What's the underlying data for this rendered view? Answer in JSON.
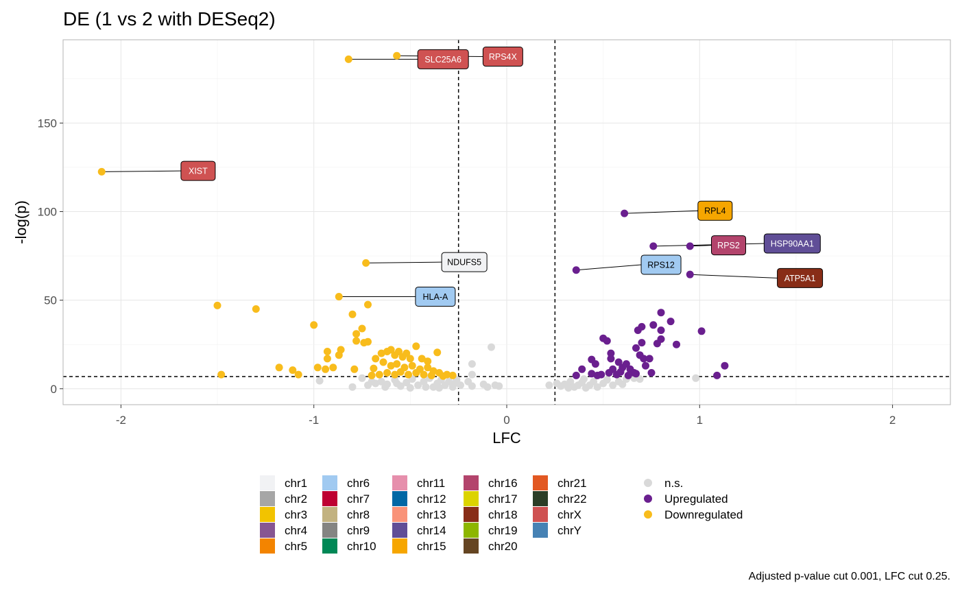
{
  "chart_data": {
    "type": "scatter",
    "title": "DE (1 vs 2 with DESeq2)",
    "xlabel": "LFC",
    "ylabel": "-log(p)",
    "xlim": [
      -2.3,
      2.3
    ],
    "ylim": [
      -9,
      197
    ],
    "x_ticks": [
      -2,
      -1,
      0,
      1,
      2
    ],
    "x_tick_labels": [
      "-2",
      "-1",
      "0",
      "1",
      "2"
    ],
    "y_ticks": [
      0,
      50,
      100,
      150
    ],
    "y_tick_labels": [
      "0",
      "50",
      "100",
      "150"
    ],
    "grid": true,
    "lfc_cut": 0.25,
    "p_cut_line": 6.9,
    "caption": "Adjusted p-value cut 0.001, LFC cut 0.25.",
    "status_colors": {
      "n.s.": "#d9d9d9",
      "Upregulated": "#6a1f8f",
      "Downregulated": "#f8bc1c"
    },
    "legend_status": [
      "n.s.",
      "Upregulated",
      "Downregulated"
    ],
    "legend_chr": [
      {
        "name": "chr1",
        "color": "#f1f2f4"
      },
      {
        "name": "chr2",
        "color": "#a6a6a6"
      },
      {
        "name": "chr3",
        "color": "#f2c300"
      },
      {
        "name": "chr4",
        "color": "#875692"
      },
      {
        "name": "chr5",
        "color": "#f38400"
      },
      {
        "name": "chr6",
        "color": "#a1caf1"
      },
      {
        "name": "chr7",
        "color": "#be0032"
      },
      {
        "name": "chr8",
        "color": "#c2b280"
      },
      {
        "name": "chr9",
        "color": "#848482"
      },
      {
        "name": "chr10",
        "color": "#008856"
      },
      {
        "name": "chr11",
        "color": "#e68fac"
      },
      {
        "name": "chr12",
        "color": "#0067a5"
      },
      {
        "name": "chr13",
        "color": "#f99379"
      },
      {
        "name": "chr14",
        "color": "#604e97"
      },
      {
        "name": "chr15",
        "color": "#f6a600"
      },
      {
        "name": "chr16",
        "color": "#b3446c"
      },
      {
        "name": "chr17",
        "color": "#dcd300"
      },
      {
        "name": "chr18",
        "color": "#882d17"
      },
      {
        "name": "chr19",
        "color": "#8db600"
      },
      {
        "name": "chr20",
        "color": "#654522"
      },
      {
        "name": "chr21",
        "color": "#e25822"
      },
      {
        "name": "chr22",
        "color": "#2b3d26"
      },
      {
        "name": "chrX",
        "color": "#cf5252"
      },
      {
        "name": "chrY",
        "color": "#4682b4"
      }
    ],
    "labeled_genes": [
      {
        "gene": "SLC25A6",
        "x": -0.82,
        "y": 186,
        "chr": "chrX",
        "label_lfc": -0.33,
        "label_p": 186
      },
      {
        "gene": "RPS4X",
        "x": -0.57,
        "y": 188,
        "chr": "chrX",
        "label_lfc": -0.02,
        "label_p": 187.5
      },
      {
        "gene": "XIST",
        "x": -2.1,
        "y": 122.5,
        "chr": "chrX",
        "label_lfc": -1.6,
        "label_p": 123
      },
      {
        "gene": "RPL4",
        "x": 0.61,
        "y": 99,
        "chr": "chr15",
        "label_lfc": 1.08,
        "label_p": 100.5
      },
      {
        "gene": "RPS2",
        "x": 0.95,
        "y": 80.5,
        "chr": "chr16",
        "label_lfc": 1.15,
        "label_p": 81
      },
      {
        "gene": "HSP90AA1",
        "x": 0.76,
        "y": 80.5,
        "chr": "chr14",
        "label_lfc": 1.48,
        "label_p": 82
      },
      {
        "gene": "NDUFS5",
        "x": -0.73,
        "y": 71,
        "chr": "chr1",
        "label_lfc": -0.22,
        "label_p": 71.5
      },
      {
        "gene": "RPS12",
        "x": 0.36,
        "y": 67,
        "chr": "chr6",
        "label_lfc": 0.8,
        "label_p": 70
      },
      {
        "gene": "ATP5A1",
        "x": 0.95,
        "y": 64.5,
        "chr": "chr18",
        "label_lfc": 1.52,
        "label_p": 62.5
      },
      {
        "gene": "HLA-A",
        "x": -0.87,
        "y": 52,
        "chr": "chr6",
        "label_lfc": -0.37,
        "label_p": 52
      }
    ],
    "points": [
      {
        "x": -1.5,
        "y": 47,
        "status": "Downregulated"
      },
      {
        "x": -1.3,
        "y": 45,
        "status": "Downregulated"
      },
      {
        "x": -1.48,
        "y": 8,
        "status": "Downregulated"
      },
      {
        "x": -1.0,
        "y": 36,
        "status": "Downregulated"
      },
      {
        "x": -0.72,
        "y": 47.5,
        "status": "Downregulated"
      },
      {
        "x": -0.8,
        "y": 42,
        "status": "Downregulated"
      },
      {
        "x": -0.78,
        "y": 31,
        "status": "Downregulated"
      },
      {
        "x": -0.75,
        "y": 34,
        "status": "Downregulated"
      },
      {
        "x": -0.78,
        "y": 27,
        "status": "Downregulated"
      },
      {
        "x": -0.74,
        "y": 26,
        "status": "Downregulated"
      },
      {
        "x": -0.72,
        "y": 26.5,
        "status": "Downregulated"
      },
      {
        "x": -0.86,
        "y": 22,
        "status": "Downregulated"
      },
      {
        "x": -0.93,
        "y": 21,
        "status": "Downregulated"
      },
      {
        "x": -0.87,
        "y": 19,
        "status": "Downregulated"
      },
      {
        "x": -0.93,
        "y": 17,
        "status": "Downregulated"
      },
      {
        "x": -0.68,
        "y": 17,
        "status": "Downregulated"
      },
      {
        "x": -1.18,
        "y": 12,
        "status": "Downregulated"
      },
      {
        "x": -1.11,
        "y": 10.5,
        "status": "Downregulated"
      },
      {
        "x": -1.08,
        "y": 8,
        "status": "Downregulated"
      },
      {
        "x": -0.98,
        "y": 12,
        "status": "Downregulated"
      },
      {
        "x": -0.94,
        "y": 11,
        "status": "Downregulated"
      },
      {
        "x": -0.9,
        "y": 12,
        "status": "Downregulated"
      },
      {
        "x": -0.79,
        "y": 11,
        "status": "Downregulated"
      },
      {
        "x": -0.69,
        "y": 11.5,
        "status": "Downregulated"
      },
      {
        "x": -0.65,
        "y": 20,
        "status": "Downregulated"
      },
      {
        "x": -0.62,
        "y": 21,
        "status": "Downregulated"
      },
      {
        "x": -0.6,
        "y": 22,
        "status": "Downregulated"
      },
      {
        "x": -0.58,
        "y": 19,
        "status": "Downregulated"
      },
      {
        "x": -0.56,
        "y": 21,
        "status": "Downregulated"
      },
      {
        "x": -0.54,
        "y": 18,
        "status": "Downregulated"
      },
      {
        "x": -0.52,
        "y": 20,
        "status": "Downregulated"
      },
      {
        "x": -0.5,
        "y": 17,
        "status": "Downregulated"
      },
      {
        "x": -0.47,
        "y": 24,
        "status": "Downregulated"
      },
      {
        "x": -0.44,
        "y": 17,
        "status": "Downregulated"
      },
      {
        "x": -0.41,
        "y": 15.5,
        "status": "Downregulated"
      },
      {
        "x": -0.36,
        "y": 20.5,
        "status": "Downregulated"
      },
      {
        "x": -0.64,
        "y": 15,
        "status": "Downregulated"
      },
      {
        "x": -0.6,
        "y": 13,
        "status": "Downregulated"
      },
      {
        "x": -0.57,
        "y": 14,
        "status": "Downregulated"
      },
      {
        "x": -0.53,
        "y": 12,
        "status": "Downregulated"
      },
      {
        "x": -0.49,
        "y": 13,
        "status": "Downregulated"
      },
      {
        "x": -0.45,
        "y": 11,
        "status": "Downregulated"
      },
      {
        "x": -0.41,
        "y": 12,
        "status": "Downregulated"
      },
      {
        "x": -0.38,
        "y": 10,
        "status": "Downregulated"
      },
      {
        "x": -0.35,
        "y": 9,
        "status": "Downregulated"
      },
      {
        "x": -0.31,
        "y": 8,
        "status": "Downregulated"
      },
      {
        "x": -0.28,
        "y": 7.5,
        "status": "Downregulated"
      },
      {
        "x": -0.62,
        "y": 9,
        "status": "Downregulated"
      },
      {
        "x": -0.58,
        "y": 8,
        "status": "Downregulated"
      },
      {
        "x": -0.55,
        "y": 9.5,
        "status": "Downregulated"
      },
      {
        "x": -0.51,
        "y": 8,
        "status": "Downregulated"
      },
      {
        "x": -0.47,
        "y": 9,
        "status": "Downregulated"
      },
      {
        "x": -0.43,
        "y": 8,
        "status": "Downregulated"
      },
      {
        "x": -0.7,
        "y": 7.5,
        "status": "Downregulated"
      },
      {
        "x": -0.66,
        "y": 8,
        "status": "Downregulated"
      },
      {
        "x": -0.39,
        "y": 7.5,
        "status": "Downregulated"
      },
      {
        "x": -0.33,
        "y": 7.2,
        "status": "Downregulated"
      },
      {
        "x": 0.36,
        "y": 7.5,
        "status": "Upregulated"
      },
      {
        "x": 0.39,
        "y": 11,
        "status": "Upregulated"
      },
      {
        "x": 0.44,
        "y": 8.5,
        "status": "Upregulated"
      },
      {
        "x": 0.47,
        "y": 7.5,
        "status": "Upregulated"
      },
      {
        "x": 0.5,
        "y": 28.5,
        "status": "Upregulated"
      },
      {
        "x": 0.52,
        "y": 27,
        "status": "Upregulated"
      },
      {
        "x": 0.54,
        "y": 20,
        "status": "Upregulated"
      },
      {
        "x": 0.54,
        "y": 17,
        "status": "Upregulated"
      },
      {
        "x": 0.44,
        "y": 16.5,
        "status": "Upregulated"
      },
      {
        "x": 0.46,
        "y": 14,
        "status": "Upregulated"
      },
      {
        "x": 0.55,
        "y": 11,
        "status": "Upregulated"
      },
      {
        "x": 0.57,
        "y": 8,
        "status": "Upregulated"
      },
      {
        "x": 0.58,
        "y": 15,
        "status": "Upregulated"
      },
      {
        "x": 0.6,
        "y": 12,
        "status": "Upregulated"
      },
      {
        "x": 0.62,
        "y": 14,
        "status": "Upregulated"
      },
      {
        "x": 0.64,
        "y": 11,
        "status": "Upregulated"
      },
      {
        "x": 0.66,
        "y": 9,
        "status": "Upregulated"
      },
      {
        "x": 0.67,
        "y": 23,
        "status": "Upregulated"
      },
      {
        "x": 0.68,
        "y": 33,
        "status": "Upregulated"
      },
      {
        "x": 0.7,
        "y": 35,
        "status": "Upregulated"
      },
      {
        "x": 0.7,
        "y": 26,
        "status": "Upregulated"
      },
      {
        "x": 0.69,
        "y": 19,
        "status": "Upregulated"
      },
      {
        "x": 0.71,
        "y": 17,
        "status": "Upregulated"
      },
      {
        "x": 0.72,
        "y": 13,
        "status": "Upregulated"
      },
      {
        "x": 0.74,
        "y": 17,
        "status": "Upregulated"
      },
      {
        "x": 0.75,
        "y": 9,
        "status": "Upregulated"
      },
      {
        "x": 0.76,
        "y": 36,
        "status": "Upregulated"
      },
      {
        "x": 0.78,
        "y": 25.5,
        "status": "Upregulated"
      },
      {
        "x": 0.8,
        "y": 43,
        "status": "Upregulated"
      },
      {
        "x": 0.8,
        "y": 33,
        "status": "Upregulated"
      },
      {
        "x": 0.8,
        "y": 28,
        "status": "Upregulated"
      },
      {
        "x": 0.85,
        "y": 38,
        "status": "Upregulated"
      },
      {
        "x": 0.88,
        "y": 25,
        "status": "Upregulated"
      },
      {
        "x": 1.01,
        "y": 32.5,
        "status": "Upregulated"
      },
      {
        "x": 1.13,
        "y": 13,
        "status": "Upregulated"
      },
      {
        "x": 1.09,
        "y": 7.5,
        "status": "Upregulated"
      },
      {
        "x": 0.67,
        "y": 8.5,
        "status": "Upregulated"
      },
      {
        "x": 0.63,
        "y": 7.5,
        "status": "Upregulated"
      },
      {
        "x": 0.59,
        "y": 9.5,
        "status": "Upregulated"
      },
      {
        "x": 0.53,
        "y": 9,
        "status": "Upregulated"
      },
      {
        "x": 0.49,
        "y": 8,
        "status": "Upregulated"
      },
      {
        "x": -0.08,
        "y": 23.5,
        "status": "n.s."
      },
      {
        "x": -0.18,
        "y": 14,
        "status": "n.s."
      },
      {
        "x": -0.18,
        "y": 8,
        "status": "n.s."
      },
      {
        "x": -0.97,
        "y": 4.5,
        "status": "n.s."
      },
      {
        "x": -0.8,
        "y": 1,
        "status": "n.s."
      },
      {
        "x": -0.75,
        "y": 6,
        "status": "n.s."
      },
      {
        "x": -0.72,
        "y": 2,
        "status": "n.s."
      },
      {
        "x": -0.68,
        "y": 3,
        "status": "n.s."
      },
      {
        "x": -0.65,
        "y": 4,
        "status": "n.s."
      },
      {
        "x": -0.62,
        "y": 2.5,
        "status": "n.s."
      },
      {
        "x": -0.58,
        "y": 5,
        "status": "n.s."
      },
      {
        "x": -0.55,
        "y": 1.5,
        "status": "n.s."
      },
      {
        "x": -0.52,
        "y": 3.5,
        "status": "n.s."
      },
      {
        "x": -0.49,
        "y": 5.5,
        "status": "n.s."
      },
      {
        "x": -0.46,
        "y": 2,
        "status": "n.s."
      },
      {
        "x": -0.43,
        "y": 4,
        "status": "n.s."
      },
      {
        "x": -0.4,
        "y": 6,
        "status": "n.s."
      },
      {
        "x": -0.38,
        "y": 1,
        "status": "n.s."
      },
      {
        "x": -0.36,
        "y": 3,
        "status": "n.s."
      },
      {
        "x": -0.34,
        "y": 5,
        "status": "n.s."
      },
      {
        "x": -0.32,
        "y": 2,
        "status": "n.s."
      },
      {
        "x": -0.3,
        "y": 4,
        "status": "n.s."
      },
      {
        "x": -0.28,
        "y": 1,
        "status": "n.s."
      },
      {
        "x": -0.27,
        "y": 3,
        "status": "n.s."
      },
      {
        "x": -0.26,
        "y": 5,
        "status": "n.s."
      },
      {
        "x": -0.35,
        "y": 0.5,
        "status": "n.s."
      },
      {
        "x": -0.42,
        "y": 1,
        "status": "n.s."
      },
      {
        "x": -0.5,
        "y": 0.5,
        "status": "n.s."
      },
      {
        "x": -0.57,
        "y": 3,
        "status": "n.s."
      },
      {
        "x": -0.63,
        "y": 1,
        "status": "n.s."
      },
      {
        "x": -0.7,
        "y": 4,
        "status": "n.s."
      },
      {
        "x": -0.24,
        "y": 2,
        "status": "n.s."
      },
      {
        "x": -0.2,
        "y": 4,
        "status": "n.s."
      },
      {
        "x": -0.18,
        "y": 1.5,
        "status": "n.s."
      },
      {
        "x": -0.12,
        "y": 2.5,
        "status": "n.s."
      },
      {
        "x": -0.1,
        "y": 1,
        "status": "n.s."
      },
      {
        "x": -0.06,
        "y": 2,
        "status": "n.s."
      },
      {
        "x": -0.04,
        "y": 1.5,
        "status": "n.s."
      },
      {
        "x": 0.22,
        "y": 2,
        "status": "n.s."
      },
      {
        "x": 0.26,
        "y": 3,
        "status": "n.s."
      },
      {
        "x": 0.28,
        "y": 1.5,
        "status": "n.s."
      },
      {
        "x": 0.3,
        "y": 2.5,
        "status": "n.s."
      },
      {
        "x": 0.33,
        "y": 4,
        "status": "n.s."
      },
      {
        "x": 0.35,
        "y": 1,
        "status": "n.s."
      },
      {
        "x": 0.37,
        "y": 2,
        "status": "n.s."
      },
      {
        "x": 0.39,
        "y": 3.5,
        "status": "n.s."
      },
      {
        "x": 0.41,
        "y": 0.5,
        "status": "n.s."
      },
      {
        "x": 0.43,
        "y": 2,
        "status": "n.s."
      },
      {
        "x": 0.45,
        "y": 4,
        "status": "n.s."
      },
      {
        "x": 0.47,
        "y": 1,
        "status": "n.s."
      },
      {
        "x": 0.5,
        "y": 3,
        "status": "n.s."
      },
      {
        "x": 0.52,
        "y": 5,
        "status": "n.s."
      },
      {
        "x": 0.55,
        "y": 2,
        "status": "n.s."
      },
      {
        "x": 0.58,
        "y": 4,
        "status": "n.s."
      },
      {
        "x": 0.6,
        "y": 2.5,
        "status": "n.s."
      },
      {
        "x": 0.62,
        "y": 5.5,
        "status": "n.s."
      },
      {
        "x": 0.66,
        "y": 6,
        "status": "n.s."
      },
      {
        "x": 0.69,
        "y": 5.5,
        "status": "n.s."
      },
      {
        "x": 0.4,
        "y": 5.5,
        "status": "n.s."
      },
      {
        "x": 0.32,
        "y": 0.5,
        "status": "n.s."
      },
      {
        "x": 0.98,
        "y": 6,
        "status": "n.s."
      }
    ]
  }
}
